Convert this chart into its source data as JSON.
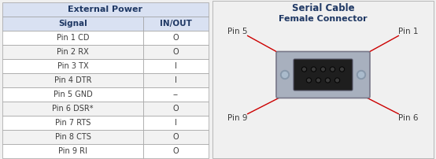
{
  "title_left": "External Power",
  "title_right": "Serial Cable",
  "subtitle_right": "Female Connector",
  "col_headers": [
    "Signal",
    "IN/OUT"
  ],
  "rows": [
    [
      "Pin 1 CD",
      "O"
    ],
    [
      "Pin 2 RX",
      "O"
    ],
    [
      "Pin 3 TX",
      "I"
    ],
    [
      "Pin 4 DTR",
      "I"
    ],
    [
      "Pin 5 GND",
      "--"
    ],
    [
      "Pin 6 DSR*",
      "O"
    ],
    [
      "Pin 7 RTS",
      "I"
    ],
    [
      "Pin 8 CTS",
      "O"
    ],
    [
      "Pin 9 RI",
      "O"
    ]
  ],
  "header_bg": "#d9e1f2",
  "col_header_bg": "#d9e1f2",
  "row_bg_even": "#ffffff",
  "row_bg_odd": "#f2f2f2",
  "border_color": "#a0a0a0",
  "header_text_color": "#1f3864",
  "data_text_color": "#3c3c3c",
  "arrow_color": "#cc0000",
  "connector_outer": "#a8b0be",
  "connector_inner": "#222222",
  "screw_color": "#8890a0",
  "right_panel_bg": "#f0f0f0"
}
